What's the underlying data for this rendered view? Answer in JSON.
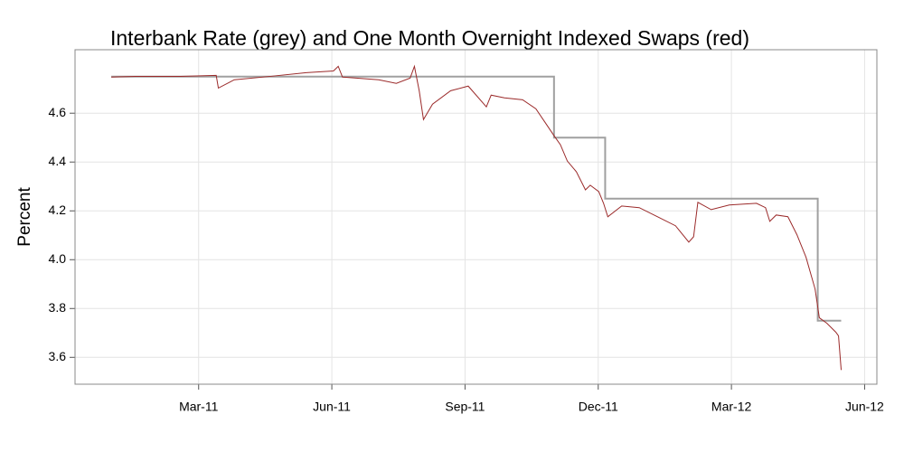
{
  "chart_data": {
    "type": "line",
    "title": "Interbank Rate (grey) and One Month Overnight Indexed Swaps (red)",
    "ylabel": "Percent",
    "xlim": [
      2010.935,
      2012.44
    ],
    "xticks": [
      {
        "value": 2011.167,
        "label": "Mar-11"
      },
      {
        "value": 2011.417,
        "label": "Jun-11"
      },
      {
        "value": 2011.667,
        "label": "Sep-11"
      },
      {
        "value": 2011.917,
        "label": "Dec-11"
      },
      {
        "value": 2012.167,
        "label": "Mar-12"
      },
      {
        "value": 2012.417,
        "label": "Jun-12"
      }
    ],
    "ylim": [
      3.49,
      4.86
    ],
    "yticks": [
      3.6,
      3.8,
      {
        "value": 4.0,
        "label": "4.0"
      },
      4.2,
      4.4,
      4.6
    ],
    "grid": true,
    "series": [
      {
        "color": "#a0a0a0",
        "x": [
          2011.003,
          2011.834,
          2011.834,
          2011.93,
          2011.93,
          2012.329,
          2012.329,
          2012.373
        ],
        "values": [
          4.75,
          4.75,
          4.5,
          4.5,
          4.25,
          4.25,
          3.75,
          3.75
        ]
      },
      {
        "color": "#9b2a2a",
        "x": [
          2011.003,
          2011.048,
          2011.133,
          2011.2,
          2011.204,
          2011.234,
          2011.302,
          2011.369,
          2011.42,
          2011.429,
          2011.437,
          2011.505,
          2011.538,
          2011.564,
          2011.572,
          2011.581,
          2011.589,
          2011.606,
          2011.64,
          2011.673,
          2011.707,
          2011.716,
          2011.741,
          2011.775,
          2011.8,
          2011.817,
          2011.834,
          2011.846,
          2011.859,
          2011.876,
          2011.893,
          2011.902,
          2011.918,
          2011.927,
          2011.935,
          2011.961,
          2011.994,
          2012.028,
          2012.062,
          2012.087,
          2012.096,
          2012.104,
          2012.129,
          2012.163,
          2012.214,
          2012.231,
          2012.239,
          2012.251,
          2012.273,
          2012.29,
          2012.307,
          2012.324,
          2012.332,
          2012.346,
          2012.363,
          2012.368,
          2012.373
        ],
        "values": [
          4.748,
          4.751,
          4.751,
          4.755,
          4.703,
          4.737,
          4.751,
          4.766,
          4.773,
          4.792,
          4.748,
          4.737,
          4.722,
          4.744,
          4.792,
          4.692,
          4.574,
          4.637,
          4.692,
          4.711,
          4.626,
          4.674,
          4.663,
          4.655,
          4.618,
          4.563,
          4.508,
          4.471,
          4.404,
          4.36,
          4.286,
          4.305,
          4.279,
          4.231,
          4.176,
          4.22,
          4.213,
          4.176,
          4.139,
          4.072,
          4.094,
          4.235,
          4.205,
          4.224,
          4.231,
          4.213,
          4.157,
          4.183,
          4.176,
          4.102,
          4.01,
          3.88,
          3.762,
          3.74,
          3.703,
          3.688,
          3.548
        ]
      }
    ]
  }
}
